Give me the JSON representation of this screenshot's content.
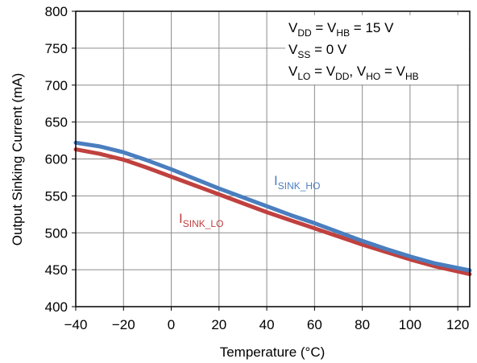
{
  "chart_data": {
    "type": "line",
    "title": "",
    "xlabel": "Temperature (°C)",
    "ylabel": "Output Sinking Current (mA)",
    "xlim": [
      -40,
      125
    ],
    "ylim": [
      400,
      800
    ],
    "x_ticks": [
      -40,
      -20,
      0,
      20,
      40,
      60,
      80,
      100,
      120
    ],
    "x_tick_labels": [
      "−40",
      "−20",
      "0",
      "20",
      "40",
      "60",
      "80",
      "100",
      "120"
    ],
    "y_ticks": [
      400,
      450,
      500,
      550,
      600,
      650,
      700,
      750,
      800
    ],
    "y_tick_labels": [
      "400",
      "450",
      "500",
      "550",
      "600",
      "650",
      "700",
      "750",
      "800"
    ],
    "grid": true,
    "annotations": [
      {
        "main": "V",
        "sub": "DD",
        "rest": " = V",
        "sub2": "HB",
        "tail": " = 15 V"
      },
      {
        "main": "V",
        "sub": "SS",
        "rest": " = 0 V",
        "sub2": "",
        "tail": ""
      },
      {
        "main": "V",
        "sub": "LO",
        "rest": " = V",
        "sub2": "DD",
        "tail": ", V",
        "sub3": "HO",
        "tail2": " = V",
        "sub4": "HB"
      }
    ],
    "series": [
      {
        "name": "I",
        "name_sub": "SINK_HO",
        "color": "#4a7ebf",
        "x": [
          -40,
          -30,
          -20,
          -10,
          0,
          10,
          20,
          30,
          40,
          50,
          60,
          70,
          80,
          90,
          100,
          110,
          125
        ],
        "y": [
          622,
          617,
          609,
          598,
          586,
          573,
          560,
          548,
          536,
          524,
          513,
          501,
          489,
          478,
          468,
          459,
          449
        ]
      },
      {
        "name": "I",
        "name_sub": "SINK_LO",
        "color": "#c0413f",
        "x": [
          -40,
          -30,
          -20,
          -10,
          0,
          10,
          20,
          30,
          40,
          50,
          60,
          70,
          80,
          90,
          100,
          110,
          125
        ],
        "y": [
          613,
          607,
          599,
          588,
          576,
          564,
          552,
          540,
          528,
          517,
          506,
          495,
          484,
          474,
          464,
          455,
          444
        ]
      }
    ]
  }
}
